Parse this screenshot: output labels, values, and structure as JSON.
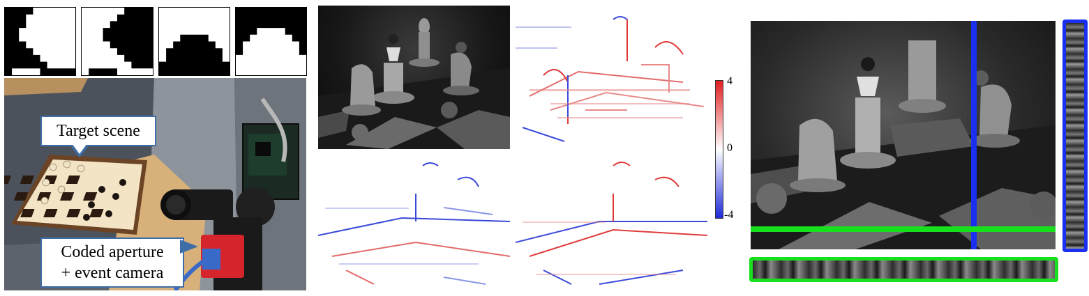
{
  "callouts": {
    "target": "Target scene",
    "camera_line1": "Coded aperture",
    "camera_line2": "+ event camera"
  },
  "colorbar": {
    "max_label": "4",
    "mid_label": "0",
    "min_label": "-4",
    "colors": {
      "positive": "#e02020",
      "zero": "#ffffff",
      "negative": "#1f2bd8"
    }
  },
  "aperture_patterns": [
    {
      "name": "pattern-1",
      "white_region": "right staircase"
    },
    {
      "name": "pattern-2",
      "white_region": "left staircase"
    },
    {
      "name": "pattern-3",
      "white_region": "top"
    },
    {
      "name": "pattern-4",
      "white_region": "top"
    }
  ],
  "guide_lines": {
    "vertical_color": "#1a2ff0",
    "horizontal_color": "#19e01f"
  }
}
